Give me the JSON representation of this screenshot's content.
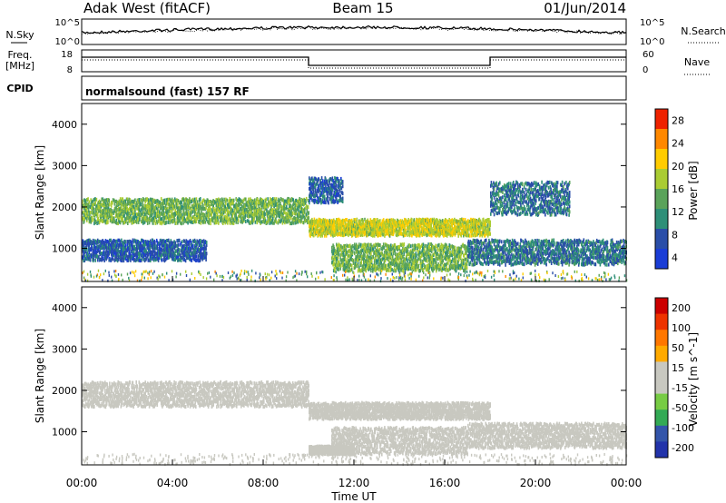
{
  "header": {
    "title": "Adak West (fitACF)",
    "beam": "Beam 15",
    "date": "01/Jun/2014"
  },
  "noise_panel": {
    "left_label": "N.Sky",
    "right_label": "N.Search",
    "left_ticks": [
      "10^5",
      "10^0"
    ],
    "right_ticks": [
      "10^5",
      "10^0"
    ]
  },
  "freq_panel": {
    "left_label": "Freq.",
    "left_unit": "[MHz]",
    "right_label": "Nave",
    "left_ticks": [
      "18",
      "8"
    ],
    "right_ticks": [
      "60",
      "0"
    ]
  },
  "cpid_panel": {
    "label": "CPID",
    "program": "normalsound (fast) 157 RF"
  },
  "colors": {
    "power_scale": [
      "#1a3dd6",
      "#2a4ea8",
      "#2e8f78",
      "#5aa35a",
      "#aacc33",
      "#ffcc00",
      "#ff8800",
      "#ee2200"
    ],
    "velocity_scale": [
      "#2233aa",
      "#3355aa",
      "#33aa55",
      "#77cc44",
      "#c8c8c0",
      "#c8c8c0",
      "#ffaa00",
      "#ff7700",
      "#ee3300",
      "#cc0000"
    ]
  },
  "chart_data": [
    {
      "type": "heatmap",
      "title": "",
      "ylabel": "Slant Range [km]",
      "xlabel": "",
      "x_tick_labels": [
        "00:00",
        "04:00",
        "08:00",
        "12:00",
        "16:00",
        "20:00",
        "00:00"
      ],
      "y_tick_labels": [
        "1000",
        "2000",
        "3000",
        "4000"
      ],
      "xlim": [
        0,
        24
      ],
      "ylim": [
        200,
        4500
      ],
      "colorbar": {
        "label": "Power [dB]",
        "ticks": [
          "28",
          "24",
          "20",
          "16",
          "12",
          "8",
          "4"
        ],
        "range": [
          0,
          30
        ]
      },
      "bands": [
        {
          "t": [
            0,
            10
          ],
          "r": [
            1600,
            2200
          ],
          "value": 14
        },
        {
          "t": [
            10,
            18
          ],
          "r": [
            1300,
            1700
          ],
          "value": 18
        },
        {
          "t": [
            18,
            21.5
          ],
          "r": [
            1800,
            2600
          ],
          "value": 8
        },
        {
          "t": [
            0,
            5.5
          ],
          "r": [
            700,
            1200
          ],
          "value": 6
        },
        {
          "t": [
            11,
            17
          ],
          "r": [
            450,
            1100
          ],
          "value": 14
        },
        {
          "t": [
            17,
            24
          ],
          "r": [
            600,
            1200
          ],
          "value": 8
        },
        {
          "t": [
            10,
            11.5
          ],
          "r": [
            2100,
            2700
          ],
          "value": 6
        }
      ]
    },
    {
      "type": "heatmap",
      "title": "",
      "ylabel": "Slant Range [km]",
      "xlabel": "Time UT",
      "x_tick_labels": [
        "00:00",
        "04:00",
        "08:00",
        "12:00",
        "16:00",
        "20:00",
        "00:00"
      ],
      "y_tick_labels": [
        "1000",
        "2000",
        "3000",
        "4000"
      ],
      "xlim": [
        0,
        24
      ],
      "ylim": [
        200,
        4500
      ],
      "colorbar": {
        "label": "Velocity [m s^-1]",
        "ticks": [
          "200",
          "100",
          "50",
          "15",
          "-15",
          "-50",
          "-100",
          "-200"
        ],
        "range": [
          -250,
          250
        ]
      },
      "bands": [
        {
          "t": [
            0,
            10
          ],
          "r": [
            1600,
            2200
          ],
          "value": 0
        },
        {
          "t": [
            10,
            18
          ],
          "r": [
            1300,
            1700
          ],
          "value": 0
        },
        {
          "t": [
            11,
            17
          ],
          "r": [
            450,
            1100
          ],
          "value": -40
        },
        {
          "t": [
            10,
            12
          ],
          "r": [
            450,
            650
          ],
          "value": 30
        },
        {
          "t": [
            17,
            24
          ],
          "r": [
            600,
            1200
          ],
          "value": 0
        }
      ]
    }
  ]
}
